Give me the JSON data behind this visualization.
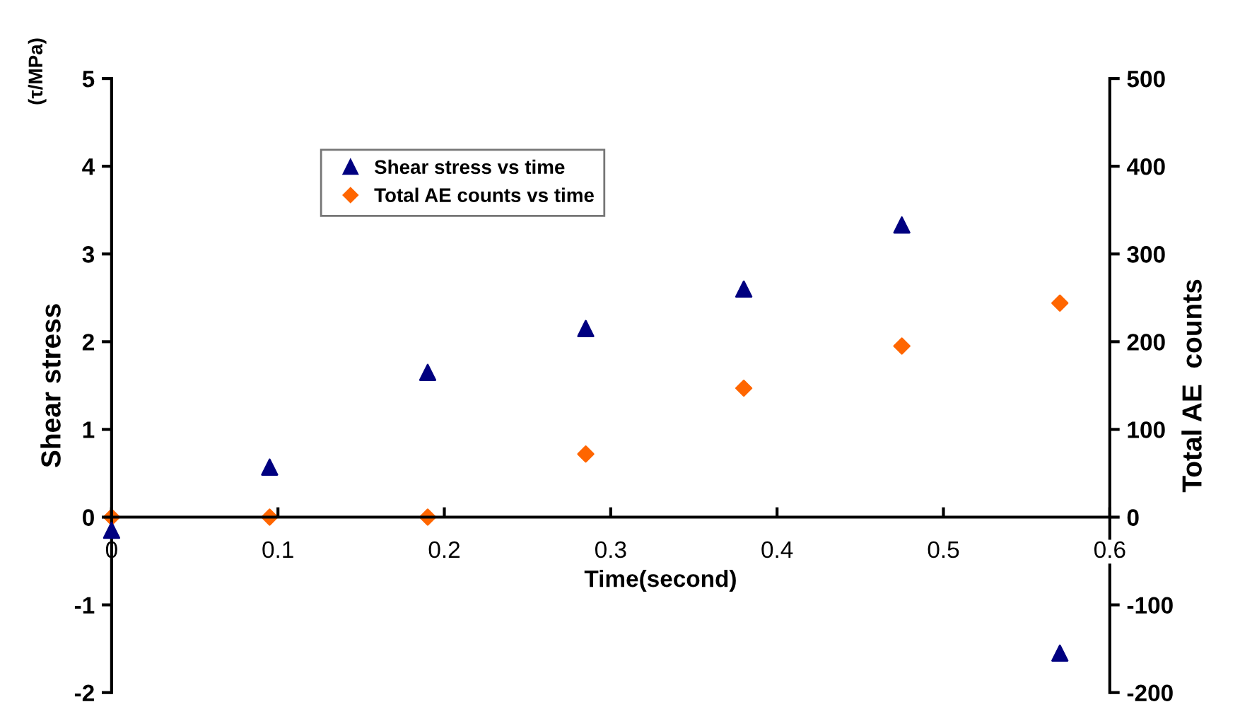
{
  "chart_data": {
    "type": "scatter",
    "xlabel": "Time(second)",
    "ylabel": "Shear stress",
    "y2label": "Total AE  counts",
    "annotations": [
      "(τ/MPa)"
    ],
    "x": [
      0,
      0.095,
      0.19,
      0.285,
      0.38,
      0.475,
      0.57
    ],
    "series": [
      {
        "name": "Shear stress vs time",
        "color": "#000080",
        "marker": "triangle",
        "values": [
          -0.15,
          0.57,
          1.65,
          2.15,
          2.6,
          3.33,
          -1.55
        ]
      },
      {
        "name": "Total AE counts vs time",
        "color": "#ff6600",
        "marker": "diamond",
        "axis": "y2",
        "values": [
          0,
          0,
          0,
          72,
          147,
          195,
          244
        ]
      }
    ],
    "xlim": [
      0,
      0.6
    ],
    "xticks": [
      0,
      0.1,
      0.2,
      0.3,
      0.4,
      0.5,
      0.6
    ],
    "ylim": [
      -2,
      5
    ],
    "yticks": [
      -2,
      -1,
      0,
      1,
      2,
      3,
      4,
      5
    ],
    "y2lim": [
      -200,
      500
    ],
    "y2ticks": [
      -200,
      -100,
      0,
      100,
      200,
      300,
      400,
      500
    ],
    "grid": false,
    "legend": "top"
  }
}
